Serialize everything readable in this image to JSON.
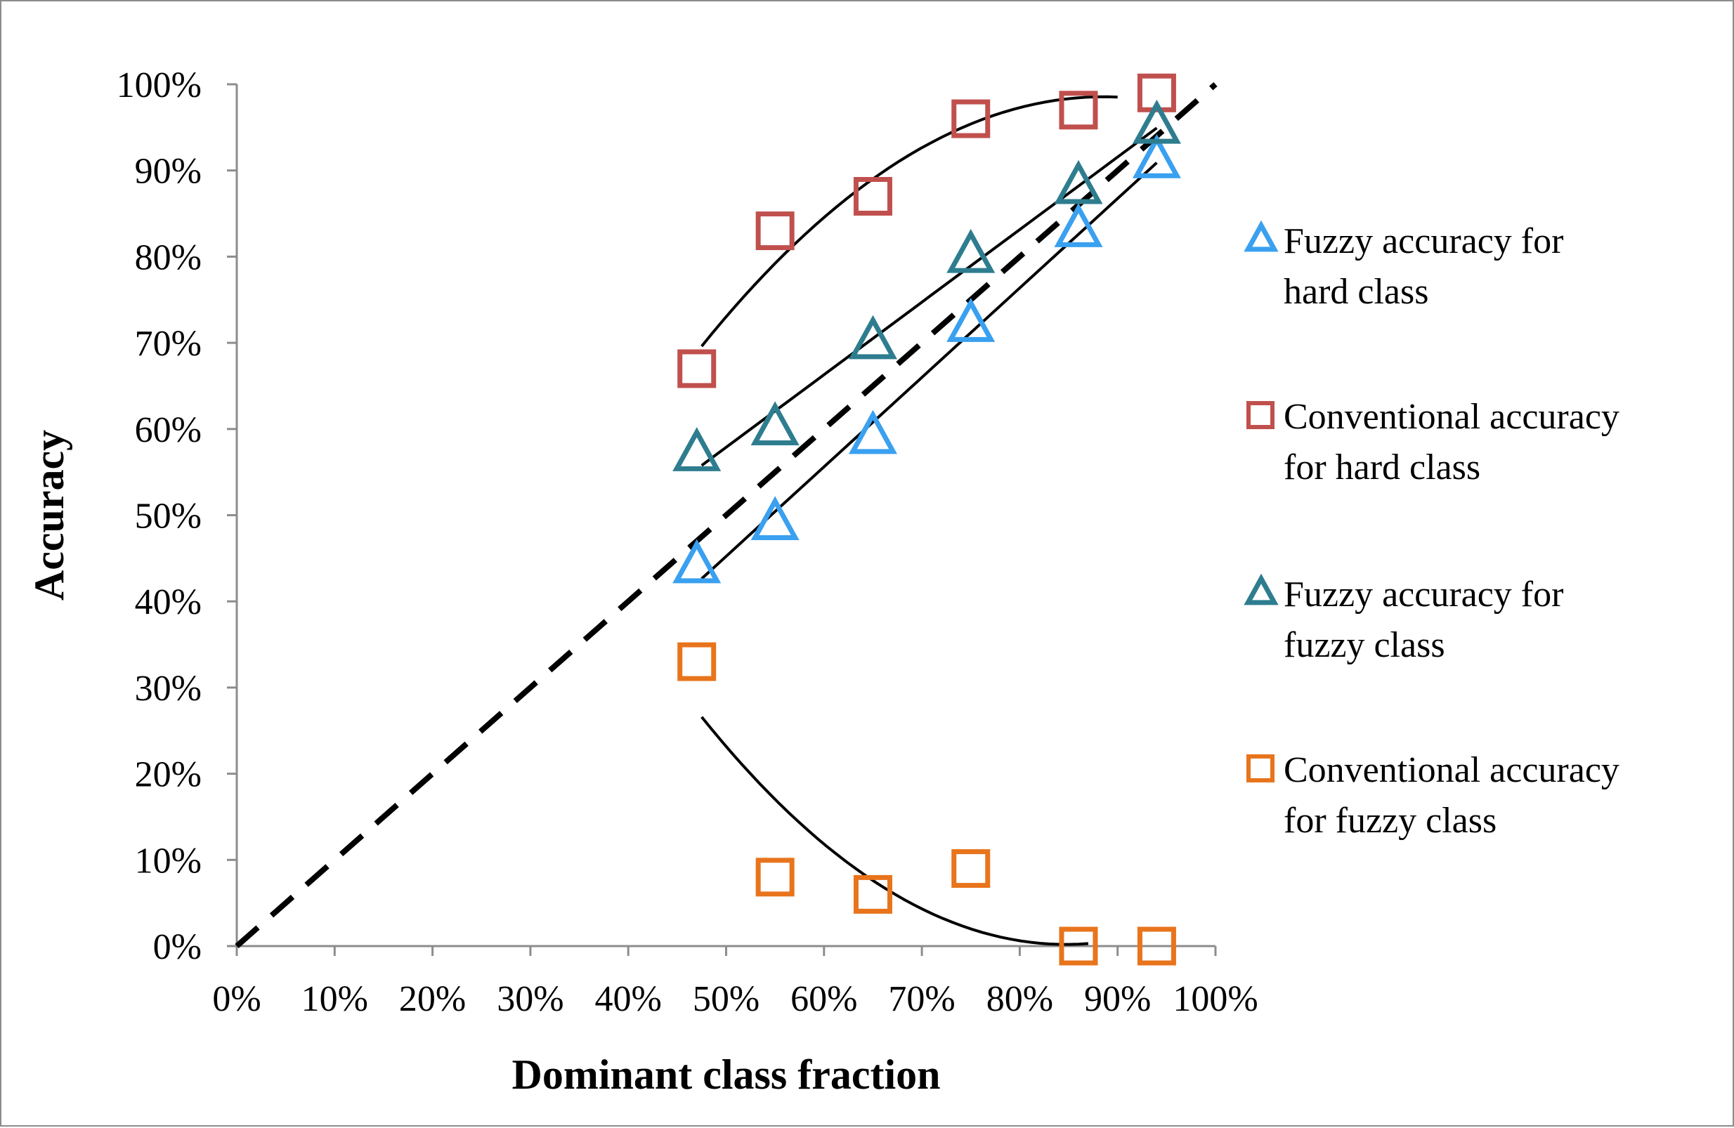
{
  "chart_data": {
    "type": "scatter",
    "title": "",
    "xlabel": "Dominant class fraction",
    "ylabel": "Accuracy",
    "xlim": [
      0,
      100
    ],
    "ylim": [
      0,
      100
    ],
    "x_ticks": [
      "0%",
      "10%",
      "20%",
      "30%",
      "40%",
      "50%",
      "60%",
      "70%",
      "80%",
      "90%",
      "100%"
    ],
    "y_ticks": [
      "0%",
      "10%",
      "20%",
      "30%",
      "40%",
      "50%",
      "60%",
      "70%",
      "80%",
      "90%",
      "100%"
    ],
    "grid": false,
    "legend_position": "right",
    "series": [
      {
        "name": "Fuzzy accuracy for hard class",
        "legend_lines": [
          "Fuzzy accuracy for",
          "hard class"
        ],
        "marker": "triangle",
        "color": "#3aa0f0",
        "x": [
          47,
          55,
          65,
          75,
          86,
          94
        ],
        "y": [
          44,
          49,
          59,
          72,
          83,
          91
        ],
        "trendline": {
          "kind": "linear",
          "x_start": 47.5,
          "x_end": 94
        }
      },
      {
        "name": "Conventional accuracy for hard class",
        "legend_lines": [
          "Conventional accuracy",
          "for hard class"
        ],
        "marker": "square",
        "color": "#c0504d",
        "x": [
          47,
          55,
          65,
          75,
          86,
          94
        ],
        "y": [
          67,
          83,
          87,
          96,
          97,
          99
        ],
        "trendline": {
          "kind": "quadratic",
          "x_start": 47.5,
          "x_end": 90
        }
      },
      {
        "name": "Fuzzy accuracy for fuzzy class",
        "legend_lines": [
          "Fuzzy accuracy for",
          "fuzzy class"
        ],
        "marker": "triangle",
        "color": "#2e7d8f",
        "x": [
          47,
          55,
          65,
          75,
          86,
          94
        ],
        "y": [
          57,
          60,
          70,
          80,
          88,
          95
        ],
        "trendline": {
          "kind": "linear",
          "x_start": 47.5,
          "x_end": 94
        }
      },
      {
        "name": "Conventional accuracy for fuzzy class",
        "legend_lines": [
          "Conventional accuracy",
          "for fuzzy class"
        ],
        "marker": "square",
        "color": "#e8741c",
        "x": [
          47,
          55,
          65,
          75,
          86,
          94
        ],
        "y": [
          33,
          8,
          6,
          9,
          0,
          0
        ],
        "trendline": {
          "kind": "quadratic",
          "x_start": 47.5,
          "x_end": 87
        }
      }
    ],
    "reference_line": {
      "name": "1:1 line",
      "style": "dashed",
      "color": "#000000",
      "x": [
        0,
        100
      ],
      "y": [
        0,
        100
      ]
    }
  }
}
